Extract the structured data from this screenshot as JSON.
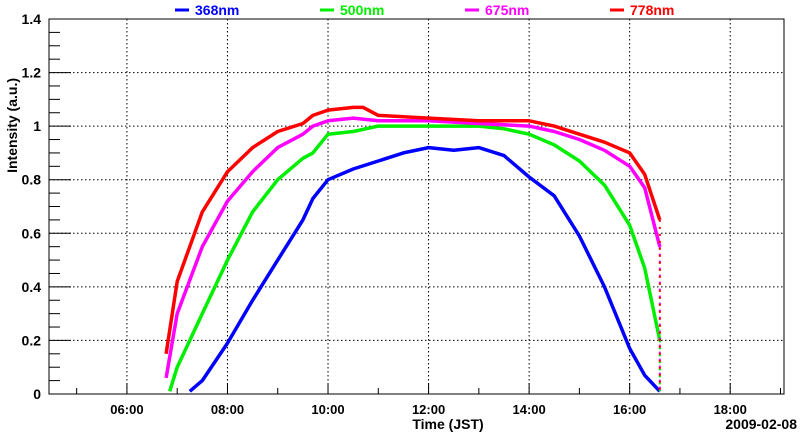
{
  "chart_data": {
    "type": "line",
    "title": "",
    "xlabel": "Time (JST)",
    "ylabel": "Intensity (a.u.)",
    "date_label": "2009-02-08",
    "xlim_hours": [
      4.45,
      19.07
    ],
    "ylim": [
      0,
      1.4
    ],
    "x_ticks": [
      {
        "value": 6,
        "label": "06:00"
      },
      {
        "value": 8,
        "label": "08:00"
      },
      {
        "value": 10,
        "label": "10:00"
      },
      {
        "value": 12,
        "label": "12:00"
      },
      {
        "value": 14,
        "label": "14:00"
      },
      {
        "value": 16,
        "label": "16:00"
      },
      {
        "value": 18,
        "label": "18:00"
      }
    ],
    "y_ticks": [
      {
        "value": 0,
        "label": "0"
      },
      {
        "value": 0.2,
        "label": "0.2"
      },
      {
        "value": 0.4,
        "label": "0.4"
      },
      {
        "value": 0.6,
        "label": "0.6"
      },
      {
        "value": 0.8,
        "label": "0.8"
      },
      {
        "value": 1.0,
        "label": "1"
      },
      {
        "value": 1.2,
        "label": "1.2"
      },
      {
        "value": 1.4,
        "label": "1.4"
      }
    ],
    "grid": true,
    "legend_position": "top",
    "series": [
      {
        "name": "368nm",
        "color": "#0000ff",
        "x": [
          7.25,
          7.5,
          8.0,
          8.5,
          9.0,
          9.5,
          9.7,
          10.0,
          10.5,
          11.0,
          11.5,
          12.0,
          12.5,
          13.0,
          13.5,
          14.0,
          14.5,
          15.0,
          15.5,
          16.0,
          16.3,
          16.6
        ],
        "y": [
          0.01,
          0.05,
          0.19,
          0.35,
          0.5,
          0.65,
          0.73,
          0.8,
          0.84,
          0.87,
          0.9,
          0.92,
          0.91,
          0.92,
          0.89,
          0.81,
          0.74,
          0.59,
          0.4,
          0.17,
          0.07,
          0.01
        ]
      },
      {
        "name": "500nm",
        "color": "#00ee00",
        "x": [
          6.85,
          7.0,
          7.5,
          8.0,
          8.5,
          9.0,
          9.5,
          9.7,
          10.0,
          10.5,
          11.0,
          12.0,
          13.0,
          13.5,
          14.0,
          14.5,
          15.0,
          15.5,
          16.0,
          16.3,
          16.6
        ],
        "y": [
          0.01,
          0.1,
          0.3,
          0.5,
          0.68,
          0.8,
          0.88,
          0.9,
          0.97,
          0.98,
          1.0,
          1.0,
          1.0,
          0.99,
          0.97,
          0.93,
          0.87,
          0.78,
          0.63,
          0.47,
          0.2
        ]
      },
      {
        "name": "675nm",
        "color": "#ff00ff",
        "x": [
          6.78,
          7.0,
          7.5,
          8.0,
          8.5,
          9.0,
          9.5,
          9.7,
          10.0,
          10.5,
          11.0,
          12.0,
          13.0,
          14.0,
          14.5,
          15.0,
          15.5,
          16.0,
          16.3,
          16.6
        ],
        "y": [
          0.06,
          0.3,
          0.55,
          0.72,
          0.83,
          0.92,
          0.97,
          1.0,
          1.02,
          1.03,
          1.02,
          1.02,
          1.01,
          1.0,
          0.98,
          0.95,
          0.91,
          0.85,
          0.77,
          0.55
        ]
      },
      {
        "name": "778nm",
        "color": "#ff0000",
        "x": [
          6.78,
          7.0,
          7.5,
          8.0,
          8.5,
          9.0,
          9.5,
          9.7,
          10.0,
          10.5,
          10.7,
          11.0,
          12.0,
          13.0,
          14.0,
          14.5,
          15.0,
          15.5,
          16.0,
          16.3,
          16.6
        ],
        "y": [
          0.15,
          0.42,
          0.68,
          0.83,
          0.92,
          0.98,
          1.01,
          1.04,
          1.06,
          1.07,
          1.07,
          1.04,
          1.03,
          1.02,
          1.02,
          1.0,
          0.97,
          0.94,
          0.9,
          0.82,
          0.65
        ]
      }
    ]
  }
}
